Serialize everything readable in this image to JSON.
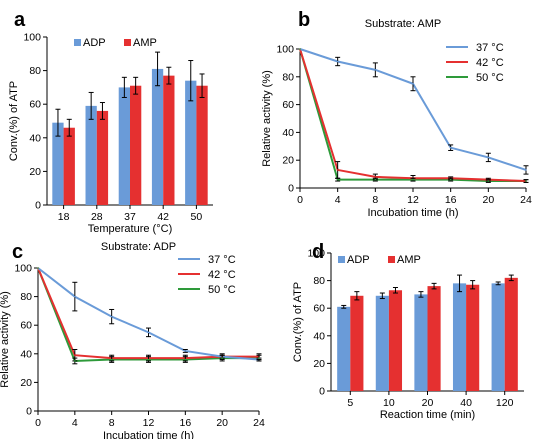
{
  "figure": {
    "panel_labels": [
      "a",
      "b",
      "c",
      "d"
    ]
  },
  "chart_data": [
    {
      "id": "a",
      "type": "bar",
      "title": "",
      "xlabel": "Temperature (°C)",
      "ylabel": "Conv.(%) of ATP",
      "categories": [
        "18",
        "28",
        "37",
        "42",
        "50"
      ],
      "ylim": [
        0,
        100
      ],
      "yticks": [
        0,
        20,
        40,
        60,
        80,
        100
      ],
      "legend_position": "top-left",
      "series": [
        {
          "name": "ADP",
          "color": "#6a9bd8",
          "values": [
            49,
            59,
            70,
            81,
            74
          ],
          "errors": [
            8,
            8,
            6,
            10,
            12
          ]
        },
        {
          "name": "AMP",
          "color": "#e53030",
          "values": [
            46,
            56,
            71,
            77,
            71
          ],
          "errors": [
            5,
            5,
            5,
            5,
            7
          ]
        }
      ]
    },
    {
      "id": "b",
      "type": "line",
      "title": "Substrate: AMP",
      "xlabel": "Incubation time (h)",
      "ylabel": "Relative activity (%)",
      "x": [
        0,
        4,
        8,
        12,
        16,
        20,
        24
      ],
      "xlim": [
        0,
        24
      ],
      "ylim": [
        0,
        100
      ],
      "yticks": [
        0,
        20,
        40,
        60,
        80,
        100
      ],
      "legend_position": "top-right",
      "series": [
        {
          "name": "37 °C",
          "color": "#6a9bd8",
          "values": [
            100,
            91,
            85,
            75,
            29,
            22,
            13
          ],
          "errors": [
            0,
            3,
            5,
            5,
            2,
            3,
            3
          ]
        },
        {
          "name": "42 °C",
          "color": "#e53030",
          "values": [
            100,
            13,
            8,
            7,
            7,
            6,
            5
          ],
          "errors": [
            0,
            6,
            2,
            2,
            1,
            1,
            1
          ]
        },
        {
          "name": "50 °C",
          "color": "#2e9a3a",
          "values": [
            100,
            6,
            6,
            6,
            6,
            5,
            5
          ],
          "errors": [
            0,
            1,
            1,
            1,
            1,
            1,
            1
          ]
        }
      ]
    },
    {
      "id": "c",
      "type": "line",
      "title": "Substrate: ADP",
      "xlabel": "Incubation time (h)",
      "ylabel": "Relative activity (%)",
      "x": [
        0,
        4,
        8,
        12,
        16,
        20,
        24
      ],
      "xlim": [
        0,
        24
      ],
      "ylim": [
        0,
        100
      ],
      "yticks": [
        0,
        20,
        40,
        60,
        80,
        100
      ],
      "legend_position": "top-right",
      "series": [
        {
          "name": "37 °C",
          "color": "#6a9bd8",
          "values": [
            100,
            80,
            66,
            55,
            42,
            38,
            36
          ],
          "errors": [
            0,
            10,
            5,
            3,
            1,
            1,
            1
          ]
        },
        {
          "name": "42 °C",
          "color": "#e53030",
          "values": [
            100,
            39,
            37,
            37,
            37,
            38,
            38
          ],
          "errors": [
            0,
            4,
            2,
            2,
            2,
            2,
            2
          ]
        },
        {
          "name": "50 °C",
          "color": "#2e9a3a",
          "values": [
            100,
            35,
            36,
            36,
            36,
            37,
            37
          ],
          "errors": [
            0,
            2,
            2,
            2,
            2,
            2,
            2
          ]
        }
      ]
    },
    {
      "id": "d",
      "type": "bar",
      "title": "",
      "xlabel": "Reaction time (min)",
      "ylabel": "Conv.(%) of ATP",
      "categories": [
        "5",
        "10",
        "20",
        "40",
        "120"
      ],
      "ylim": [
        0,
        100
      ],
      "yticks": [
        0,
        20,
        40,
        60,
        80,
        100
      ],
      "legend_position": "top-left",
      "series": [
        {
          "name": "ADP",
          "color": "#6a9bd8",
          "values": [
            61,
            69,
            70,
            78,
            78
          ],
          "errors": [
            1,
            2,
            2,
            6,
            1
          ]
        },
        {
          "name": "AMP",
          "color": "#e53030",
          "values": [
            69,
            73,
            76,
            77,
            82
          ],
          "errors": [
            3,
            2,
            2,
            3,
            2
          ]
        }
      ]
    }
  ]
}
